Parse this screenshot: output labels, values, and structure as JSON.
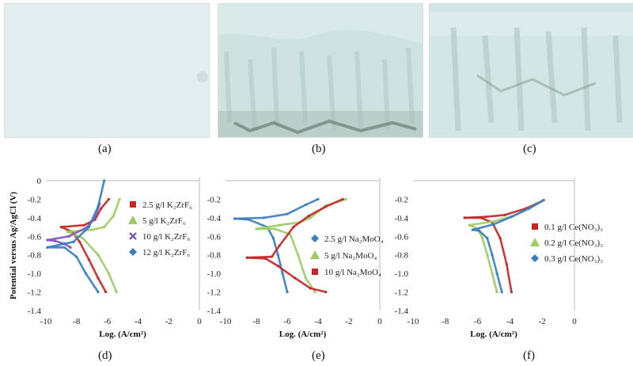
{
  "captions": {
    "a": "(a)",
    "b": "(b)",
    "c": "(c)",
    "d": "(d)",
    "e": "(e)",
    "f": "(f)"
  },
  "colors": {
    "red": "#c62828",
    "green": "#9ccc65",
    "purple": "#7e57c2",
    "blue": "#3a7ebf",
    "photo_base": "#dfeeee"
  },
  "chart_data": [
    {
      "type": "line",
      "ylabel": "Potential versus Ag/AgCl (V)",
      "xlabel": "Log. (A/cm²)",
      "xlim": [
        -10,
        0
      ],
      "ylim": [
        -1.4,
        0
      ],
      "xticks": [
        -10,
        -8,
        -6,
        -4,
        -2,
        0
      ],
      "yticks": [
        0,
        -0.2,
        -0.4,
        -0.6,
        -0.8,
        -1.0,
        -1.2,
        -1.4
      ],
      "yticklabels": [
        "0",
        "-0.2",
        "-0.4",
        "-0.6",
        "-0.8",
        "-1.0",
        "-1.2",
        "-1.4"
      ],
      "legend": "right",
      "series": [
        {
          "name": "2.5 g/l K₂ZrF₆",
          "color": "#c62828",
          "marker": "square",
          "cathodic": [
            [
              -6.1,
              -1.2
            ],
            [
              -6.6,
              -1.05
            ],
            [
              -7.2,
              -0.85
            ],
            [
              -7.8,
              -0.66
            ],
            [
              -8.3,
              -0.55
            ],
            [
              -9.0,
              -0.5
            ]
          ],
          "anodic": [
            [
              -9.0,
              -0.5
            ],
            [
              -7.5,
              -0.48
            ],
            [
              -6.8,
              -0.42
            ],
            [
              -6.4,
              -0.3
            ],
            [
              -5.9,
              -0.2
            ]
          ]
        },
        {
          "name": "5 g/l K₂ZrF₆",
          "color": "#9ccc65",
          "marker": "triangle",
          "cathodic": [
            [
              -5.4,
              -1.2
            ],
            [
              -5.9,
              -1.0
            ],
            [
              -6.6,
              -0.8
            ],
            [
              -7.6,
              -0.62
            ],
            [
              -8.6,
              -0.55
            ]
          ],
          "anodic": [
            [
              -8.6,
              -0.55
            ],
            [
              -7.0,
              -0.53
            ],
            [
              -6.2,
              -0.5
            ],
            [
              -5.6,
              -0.38
            ],
            [
              -5.2,
              -0.2
            ]
          ]
        },
        {
          "name": "10 g/l K₂ZrF₆",
          "color": "#7e57c2",
          "marker": "cross",
          "cathodic": [
            [
              -8.4,
              -0.72
            ],
            [
              -8.8,
              -0.68
            ],
            [
              -9.4,
              -0.65
            ],
            [
              -9.9,
              -0.64
            ]
          ],
          "anodic": [
            [
              -9.9,
              -0.64
            ],
            [
              -8.5,
              -0.6
            ],
            [
              -7.3,
              -0.5
            ],
            [
              -6.8,
              -0.4
            ],
            [
              -6.5,
              -0.25
            ]
          ]
        },
        {
          "name": "12 g/l K₂ZrF₆",
          "color": "#3a7ebf",
          "marker": "diamond",
          "cathodic": [
            [
              -6.6,
              -1.2
            ],
            [
              -7.4,
              -1.0
            ],
            [
              -8.0,
              -0.82
            ],
            [
              -8.8,
              -0.72
            ],
            [
              -9.9,
              -0.72
            ]
          ],
          "anodic": [
            [
              -9.9,
              -0.72
            ],
            [
              -8.2,
              -0.66
            ],
            [
              -7.2,
              -0.5
            ],
            [
              -6.6,
              -0.28
            ],
            [
              -6.2,
              0.0
            ]
          ]
        }
      ]
    },
    {
      "type": "line",
      "xlabel": "Log. (A/cm²)",
      "xlim": [
        -10,
        0
      ],
      "ylim": [
        -1.4,
        0
      ],
      "xticks": [
        -10,
        -8,
        -6,
        -4,
        -2,
        0
      ],
      "yticks": [
        -0.2,
        -0.4,
        -0.6,
        -0.8,
        -1.0,
        -1.2,
        -1.4
      ],
      "yticklabels": [
        "-0.2",
        "-0.4",
        "-0.6",
        "-0.8",
        "-1.0",
        "-1.2",
        "-1.4"
      ],
      "legend": "right",
      "series": [
        {
          "name": "2.5 g/l Na₂MoO₄",
          "color": "#3a7ebf",
          "marker": "diamond",
          "cathodic": [
            [
              -6.0,
              -1.2
            ],
            [
              -6.3,
              -1.0
            ],
            [
              -6.6,
              -0.8
            ],
            [
              -6.9,
              -0.62
            ],
            [
              -7.3,
              -0.5
            ],
            [
              -8.5,
              -0.42
            ],
            [
              -9.4,
              -0.41
            ]
          ],
          "anodic": [
            [
              -9.4,
              -0.41
            ],
            [
              -7.5,
              -0.4
            ],
            [
              -6.0,
              -0.36
            ],
            [
              -4.8,
              -0.26
            ],
            [
              -4.0,
              -0.2
            ]
          ]
        },
        {
          "name": "5 g/l Na₂MoO₄",
          "color": "#9ccc65",
          "marker": "triangle",
          "cathodic": [
            [
              -4.2,
              -1.2
            ],
            [
              -4.8,
              -1.05
            ],
            [
              -5.3,
              -0.8
            ],
            [
              -5.8,
              -0.58
            ],
            [
              -6.8,
              -0.52
            ],
            [
              -8.0,
              -0.52
            ]
          ],
          "anodic": [
            [
              -8.0,
              -0.52
            ],
            [
              -6.5,
              -0.48
            ],
            [
              -5.2,
              -0.45
            ],
            [
              -4.5,
              -0.4
            ],
            [
              -3.5,
              -0.27
            ],
            [
              -2.2,
              -0.2
            ]
          ]
        },
        {
          "name": "10 g/l Na₂MoO₄",
          "color": "#c62828",
          "marker": "square",
          "cathodic": [
            [
              -3.5,
              -1.2
            ],
            [
              -4.5,
              -1.16
            ],
            [
              -5.5,
              -1.05
            ],
            [
              -6.6,
              -0.92
            ],
            [
              -7.4,
              -0.84
            ],
            [
              -8.6,
              -0.83
            ]
          ],
          "anodic": [
            [
              -8.6,
              -0.83
            ],
            [
              -7.0,
              -0.82
            ],
            [
              -6.5,
              -0.7
            ],
            [
              -5.6,
              -0.5
            ],
            [
              -4.6,
              -0.38
            ],
            [
              -3.5,
              -0.28
            ],
            [
              -2.4,
              -0.2
            ]
          ]
        }
      ]
    },
    {
      "type": "line",
      "xlabel": "Log. (A/cm²)",
      "xlim": [
        -10,
        0
      ],
      "ylim": [
        -1.4,
        0
      ],
      "xticks": [
        -10,
        -8,
        -6,
        -4,
        -2,
        0
      ],
      "yticks": [
        -0.2,
        -0.4,
        -0.6,
        -0.8,
        -1.0,
        -1.2,
        -1.4
      ],
      "yticklabels": [
        "-0.2",
        "-0.4",
        "-0.6",
        "-0.8",
        "-1.0",
        "-1.2",
        "-1.4"
      ],
      "legend": "right",
      "series": [
        {
          "name": "0.1 g/l Ce(NO₃)₃",
          "color": "#c62828",
          "marker": "square",
          "cathodic": [
            [
              -3.9,
              -1.2
            ],
            [
              -4.2,
              -0.9
            ],
            [
              -4.6,
              -0.62
            ],
            [
              -5.1,
              -0.45
            ],
            [
              -5.8,
              -0.4
            ],
            [
              -6.8,
              -0.4
            ]
          ],
          "anodic": [
            [
              -6.8,
              -0.4
            ],
            [
              -5.5,
              -0.39
            ],
            [
              -4.3,
              -0.37
            ],
            [
              -3.0,
              -0.3
            ],
            [
              -2.0,
              -0.22
            ]
          ]
        },
        {
          "name": "0.2 g/l Ce(NO₃)₃",
          "color": "#9ccc65",
          "marker": "triangle",
          "cathodic": [
            [
              -4.8,
              -1.2
            ],
            [
              -5.1,
              -1.0
            ],
            [
              -5.4,
              -0.8
            ],
            [
              -5.7,
              -0.62
            ],
            [
              -6.0,
              -0.52
            ],
            [
              -6.5,
              -0.48
            ]
          ],
          "anodic": [
            [
              -6.5,
              -0.48
            ],
            [
              -5.0,
              -0.44
            ],
            [
              -3.8,
              -0.38
            ],
            [
              -2.8,
              -0.3
            ],
            [
              -2.0,
              -0.22
            ]
          ]
        },
        {
          "name": "0.3 g/l Ce(NO₃)₃",
          "color": "#3a7ebf",
          "marker": "diamond",
          "cathodic": [
            [
              -4.5,
              -1.2
            ],
            [
              -4.8,
              -1.0
            ],
            [
              -5.1,
              -0.8
            ],
            [
              -5.4,
              -0.62
            ],
            [
              -5.9,
              -0.54
            ],
            [
              -6.3,
              -0.53
            ]
          ],
          "anodic": [
            [
              -6.3,
              -0.53
            ],
            [
              -5.0,
              -0.47
            ],
            [
              -3.9,
              -0.39
            ],
            [
              -2.8,
              -0.3
            ],
            [
              -1.9,
              -0.21
            ]
          ]
        }
      ]
    }
  ]
}
